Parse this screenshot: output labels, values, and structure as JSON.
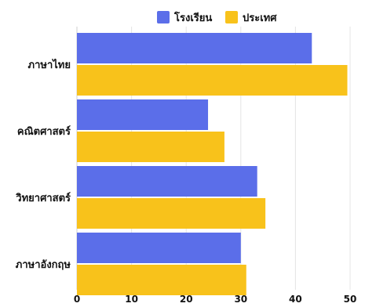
{
  "chart_data": {
    "type": "bar",
    "orientation": "horizontal",
    "title": "",
    "xlabel": "",
    "ylabel": "",
    "categories": [
      "ภาษาไทย",
      "คณิตศาสตร์",
      "วิทยาศาสตร์",
      "ภาษาอังกฤษ"
    ],
    "series": [
      {
        "name": "โรงเรียน",
        "color": "#5b6ee9",
        "values": [
          43,
          24,
          33,
          30
        ]
      },
      {
        "name": "ประเทศ",
        "color": "#f8c21b",
        "values": [
          49.5,
          27,
          34.5,
          31
        ]
      }
    ],
    "xlim": [
      0,
      50
    ],
    "xticks": [
      0,
      10,
      20,
      30,
      40,
      50
    ],
    "grid": true,
    "legend": "top"
  }
}
